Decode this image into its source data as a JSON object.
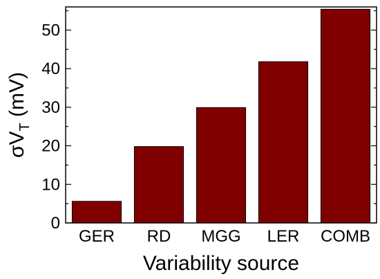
{
  "chart_data": {
    "type": "bar",
    "categories": [
      "GER",
      "RD",
      "MGG",
      "LER",
      "COMB"
    ],
    "values": [
      5.6,
      19.8,
      29.9,
      41.8,
      55.4
    ],
    "title": "",
    "xlabel": "Variability source",
    "ylabel": {
      "prefix": "σV",
      "subscript": "T",
      "suffix": " (mV)"
    },
    "ylim": [
      0,
      56
    ],
    "yticks": [
      0,
      10,
      20,
      30,
      40,
      50
    ],
    "grid": false,
    "bar_color": "#800000"
  }
}
